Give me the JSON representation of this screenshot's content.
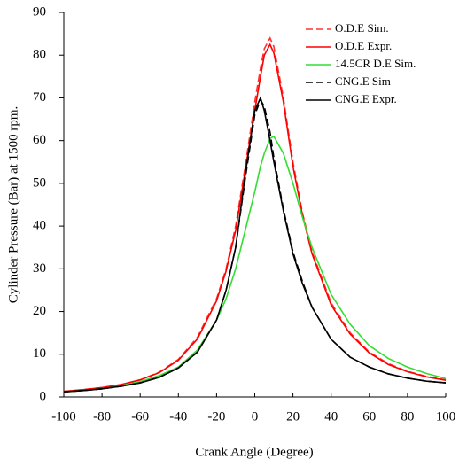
{
  "chart_data": {
    "type": "line",
    "xlabel": "Crank Angle (Degree)",
    "ylabel": "Cylinder Pressure (Bar) at 1500 rpm.",
    "x": [
      -100,
      -90,
      -80,
      -70,
      -60,
      -50,
      -40,
      -30,
      -20,
      -15,
      -10,
      -5,
      0,
      3,
      5,
      8,
      10,
      15,
      20,
      25,
      30,
      40,
      50,
      60,
      70,
      80,
      90,
      100
    ],
    "series": [
      {
        "name": "O.D.E Sim.",
        "color": "#ff3333",
        "dash": true,
        "values": [
          1.3,
          1.7,
          2.2,
          2.9,
          4.0,
          5.8,
          8.8,
          14,
          23,
          30,
          40,
          54,
          69,
          77,
          81.5,
          84,
          82,
          70,
          55,
          43,
          34,
          22,
          15,
          10.5,
          7.8,
          6,
          4.8,
          4
        ]
      },
      {
        "name": "O.D.E Expr.",
        "color": "#ff0000",
        "dash": false,
        "values": [
          1.3,
          1.7,
          2.2,
          2.9,
          4.0,
          5.7,
          8.6,
          13.6,
          22.5,
          29.5,
          39,
          53,
          67,
          75,
          80,
          82.5,
          80.5,
          69,
          54,
          42.5,
          33.5,
          21.5,
          14.7,
          10.3,
          7.6,
          5.9,
          4.7,
          3.9
        ]
      },
      {
        "name": "14.5CR D.E Sim.",
        "color": "#33dd33",
        "dash": false,
        "values": [
          1.2,
          1.5,
          1.9,
          2.6,
          3.6,
          5.0,
          7.0,
          11,
          18,
          23,
          30,
          39,
          48,
          54,
          57,
          60.5,
          61,
          57,
          50,
          42,
          35,
          24,
          17,
          12,
          9,
          7,
          5.5,
          4.3
        ]
      },
      {
        "name": "CNG.E Sim",
        "color": "#000000",
        "dash": true,
        "values": [
          1.2,
          1.5,
          1.9,
          2.5,
          3.3,
          4.6,
          6.8,
          10.5,
          18,
          25,
          35,
          51,
          66,
          69.5,
          68,
          62,
          56,
          44,
          34,
          27,
          21,
          13.5,
          9.3,
          7,
          5.4,
          4.4,
          3.7,
          3.3
        ]
      },
      {
        "name": "CNG.E Expr.",
        "color": "#000000",
        "dash": false,
        "values": [
          1.2,
          1.5,
          1.9,
          2.5,
          3.3,
          4.6,
          6.8,
          10.5,
          18,
          25,
          35,
          52,
          67,
          70,
          67,
          60,
          55,
          43.5,
          33.5,
          26.5,
          21,
          13.5,
          9.3,
          7,
          5.4,
          4.4,
          3.7,
          3.3
        ]
      }
    ],
    "xlim": [
      -100,
      100
    ],
    "xticks": [
      -100,
      -80,
      -60,
      -40,
      -20,
      0,
      20,
      40,
      60,
      80,
      100
    ],
    "ylim": [
      0,
      90
    ],
    "yticks": [
      0,
      10,
      20,
      30,
      40,
      50,
      60,
      70,
      80,
      90
    ],
    "legend": "top-right"
  }
}
